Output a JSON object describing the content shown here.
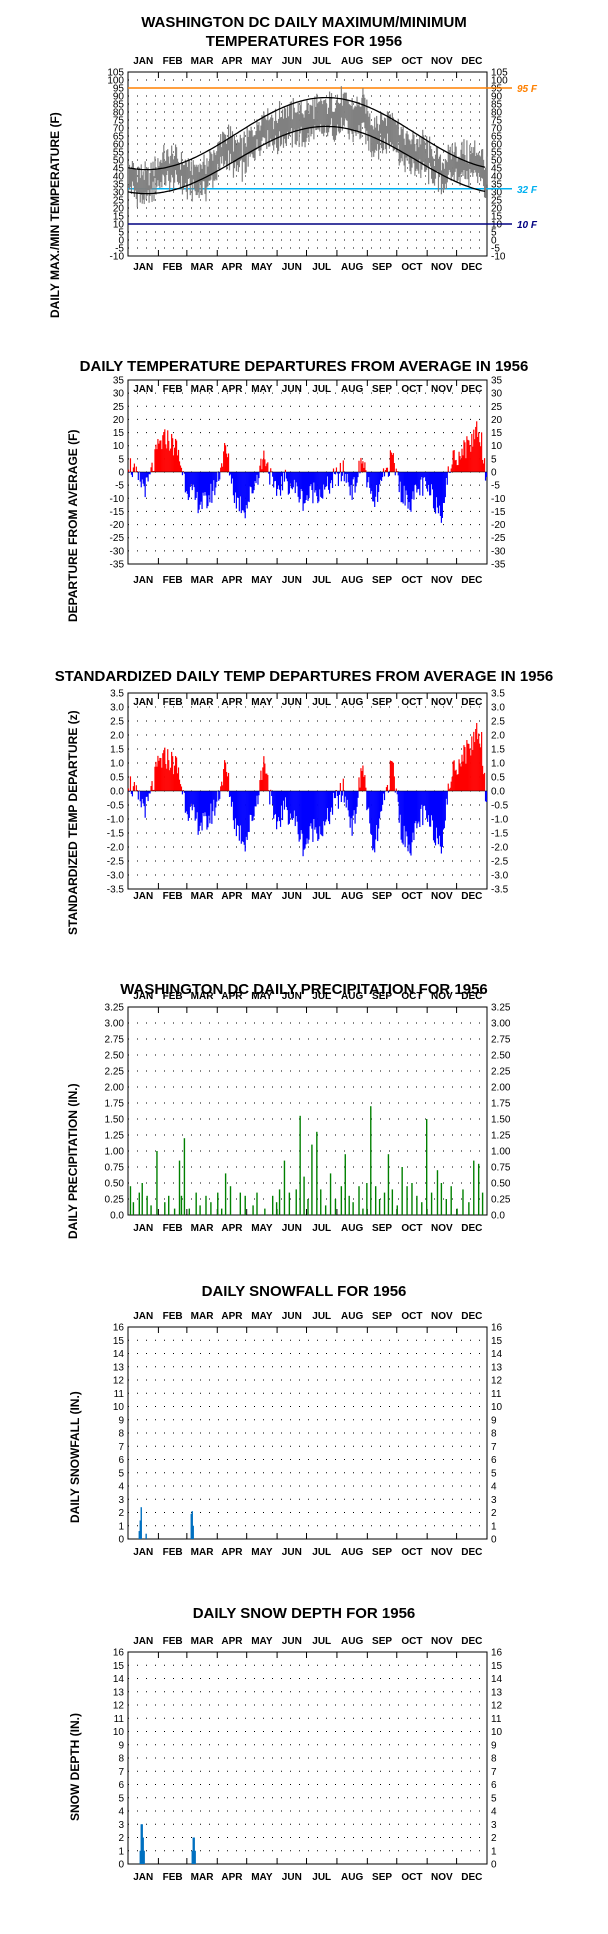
{
  "months": [
    "JAN",
    "FEB",
    "MAR",
    "APR",
    "MAY",
    "JUN",
    "JUL",
    "AUG",
    "SEP",
    "OCT",
    "NOV",
    "DEC"
  ],
  "colors": {
    "max_min_series": "#808080",
    "normal_curves": "#000000",
    "positive_departure": "#ff0000",
    "negative_departure": "#0000ff",
    "precipitation": "#008000",
    "snow": "#0070c0",
    "line_95F": "#ff8000",
    "line_32F": "#00b0f0",
    "line_10F": "#000080"
  },
  "chart_data": [
    {
      "id": "temps",
      "type": "line",
      "title_line1": "WASHINGTON DC DAILY MAXIMUM/MINIMUM",
      "title_line2": "TEMPERATURES FOR 1956",
      "ylabel": "DAILY MAX./MIN TEMPERATURE (F)",
      "ylim": [
        -10,
        105
      ],
      "ytick_step": 5,
      "ytick_labels": [
        "105",
        "100",
        "95",
        "90",
        "85",
        "80",
        "75",
        "70",
        "65",
        "60",
        "55",
        "50",
        "45",
        "40",
        "35",
        "30",
        "25",
        "20",
        "15",
        "10",
        "5",
        "0",
        "-5",
        "-10"
      ],
      "reference_lines": [
        {
          "value": 95,
          "label": "95 F",
          "color": "#ff8000"
        },
        {
          "value": 32,
          "label": "32 F",
          "color": "#00b0f0"
        },
        {
          "value": 10,
          "label": "10 F",
          "color": "#000080"
        }
      ],
      "normal_max": {
        "jan1": 44,
        "jul20": 89
      },
      "normal_min": {
        "jan1": 29,
        "jul20": 71
      },
      "observed_envelope": {
        "winter_max_range": [
          35,
          60
        ],
        "winter_min_range": [
          20,
          40
        ],
        "summer_max_range": [
          80,
          95
        ],
        "summer_min_range": [
          63,
          78
        ]
      }
    },
    {
      "id": "departures",
      "type": "bar",
      "title": "DAILY TEMPERATURE DEPARTURES FROM AVERAGE IN 1956",
      "ylabel": "DEPARTURE FROM AVERAGE (F)",
      "ylim": [
        -35,
        35
      ],
      "ytick_step": 5,
      "ytick_labels": [
        "35",
        "30",
        "25",
        "20",
        "15",
        "10",
        "5",
        "0",
        "-5",
        "-10",
        "-15",
        "-20",
        "-25",
        "-30",
        "-35"
      ],
      "approx_profile_days": [
        1,
        10,
        20,
        32,
        40,
        50,
        60,
        70,
        80,
        90,
        100,
        110,
        120,
        130,
        140,
        150,
        160,
        170,
        180,
        190,
        200,
        210,
        220,
        230,
        240,
        250,
        260,
        270,
        280,
        290,
        300,
        310,
        320,
        330,
        340,
        350,
        356,
        361,
        366
      ],
      "approx_profile_values": [
        4,
        -3,
        -6,
        10,
        13,
        9,
        -5,
        -11,
        -12,
        -5,
        9,
        -10,
        -14,
        -4,
        7,
        -8,
        -3,
        -6,
        -11,
        -7,
        -8,
        -3,
        0,
        -7,
        5,
        -13,
        -4,
        6,
        -9,
        -11,
        -5,
        -9,
        -15,
        4,
        8,
        11,
        17,
        12,
        -3
      ]
    },
    {
      "id": "standardized",
      "type": "bar",
      "title": "STANDARDIZED DAILY TEMP DEPARTURES FROM AVERAGE IN 1956",
      "ylabel": "STANDARDIZED TEMP DEPARTURE (z)",
      "ylim": [
        -3.5,
        3.5
      ],
      "ytick_step": 0.5,
      "ytick_labels": [
        "3.5",
        "3.0",
        "2.5",
        "2.0",
        "1.5",
        "1.0",
        "0.5",
        "0.0",
        "-0.5",
        "-1.0",
        "-1.5",
        "-2.0",
        "-2.5",
        "-3.0",
        "-3.5"
      ],
      "approx_profile_days": [
        1,
        10,
        20,
        32,
        40,
        50,
        60,
        70,
        80,
        90,
        100,
        110,
        120,
        130,
        140,
        150,
        160,
        170,
        180,
        190,
        200,
        210,
        220,
        230,
        240,
        250,
        260,
        270,
        280,
        290,
        300,
        310,
        320,
        330,
        340,
        350,
        356,
        361,
        366
      ],
      "approx_profile_values": [
        0.4,
        -0.3,
        -0.6,
        1.0,
        1.2,
        0.9,
        -0.5,
        -1.1,
        -1.2,
        -0.5,
        0.9,
        -1.2,
        -1.8,
        -0.6,
        1.2,
        -1.3,
        -0.6,
        -1.0,
        -2.0,
        -1.3,
        -1.4,
        -0.5,
        0,
        -1.3,
        1.0,
        -2.3,
        -0.7,
        1.0,
        -1.6,
        -1.9,
        -0.8,
        -1.3,
        -1.8,
        0.6,
        1.2,
        1.6,
        2.2,
        1.8,
        -0.5
      ]
    },
    {
      "id": "precip",
      "type": "bar",
      "title": "WASHINGTON DC DAILY PRECIPITATION FOR 1956",
      "ylabel": "DAILY PRECIPITATION (IN.)",
      "ylim": [
        0,
        3.25
      ],
      "ytick_step": 0.25,
      "ytick_labels": [
        "3.25",
        "3.00",
        "2.75",
        "2.50",
        "2.25",
        "2.00",
        "1.75",
        "1.50",
        "1.25",
        "1.00",
        "0.75",
        "0.50",
        "0.25",
        "0.0"
      ],
      "days": [
        3,
        6,
        12,
        15,
        20,
        24,
        30,
        38,
        42,
        48,
        53,
        55,
        58,
        63,
        70,
        74,
        80,
        85,
        92,
        96,
        100,
        105,
        115,
        120,
        128,
        132,
        140,
        148,
        152,
        155,
        160,
        165,
        172,
        176,
        180,
        184,
        188,
        193,
        197,
        202,
        207,
        212,
        218,
        222,
        226,
        230,
        236,
        240,
        244,
        248,
        253,
        257,
        262,
        266,
        270,
        275,
        280,
        285,
        290,
        295,
        300,
        305,
        310,
        316,
        320,
        325,
        330,
        336,
        342,
        348,
        353,
        358,
        362
      ],
      "values": [
        0.45,
        0.2,
        0.35,
        0.5,
        0.3,
        0.15,
        1.0,
        0.2,
        0.3,
        0.1,
        0.85,
        0.3,
        1.2,
        0.1,
        0.35,
        0.15,
        0.3,
        0.2,
        0.35,
        0.1,
        0.65,
        0.45,
        0.35,
        0.3,
        0.15,
        0.35,
        0.1,
        0.3,
        0.2,
        0.4,
        0.85,
        0.35,
        0.4,
        1.55,
        0.6,
        0.25,
        1.1,
        1.3,
        0.4,
        0.15,
        0.65,
        0.25,
        0.45,
        0.95,
        0.3,
        0.2,
        0.45,
        0.1,
        0.5,
        1.7,
        0.45,
        0.25,
        0.35,
        0.95,
        0.4,
        0.15,
        0.75,
        0.45,
        0.5,
        0.3,
        0.2,
        1.5,
        0.35,
        0.7,
        0.5,
        0.25,
        0.45,
        0.1,
        0.4,
        0.2,
        0.85,
        0.8,
        0.35
      ]
    },
    {
      "id": "snowfall",
      "type": "bar",
      "title": "DAILY SNOWFALL FOR 1956",
      "ylabel": "DAILY SNOWFALL (IN.)",
      "ylim": [
        0,
        16
      ],
      "ytick_step": 1,
      "ytick_labels": [
        "16",
        "15",
        "14",
        "13",
        "12",
        "11",
        "10",
        "9",
        "8",
        "7",
        "6",
        "5",
        "4",
        "3",
        "2",
        "1",
        "0"
      ],
      "days": [
        12,
        13,
        14,
        19,
        65,
        66,
        67
      ],
      "values": [
        0.6,
        1.4,
        2.4,
        0.4,
        1.9,
        2.1,
        1.0
      ]
    },
    {
      "id": "snowdepth",
      "type": "bar",
      "title": "DAILY SNOW DEPTH FOR 1956",
      "ylabel": "SNOW DEPTH (IN.)",
      "ylim": [
        0,
        16
      ],
      "ytick_step": 1,
      "ytick_labels": [
        "16",
        "15",
        "14",
        "13",
        "12",
        "11",
        "10",
        "9",
        "8",
        "7",
        "6",
        "5",
        "4",
        "3",
        "2",
        "1",
        "0"
      ],
      "days": [
        13,
        14,
        15,
        16,
        17,
        66,
        67,
        68,
        69
      ],
      "values": [
        1,
        3,
        3,
        2,
        1,
        1,
        2,
        2,
        1
      ]
    }
  ]
}
